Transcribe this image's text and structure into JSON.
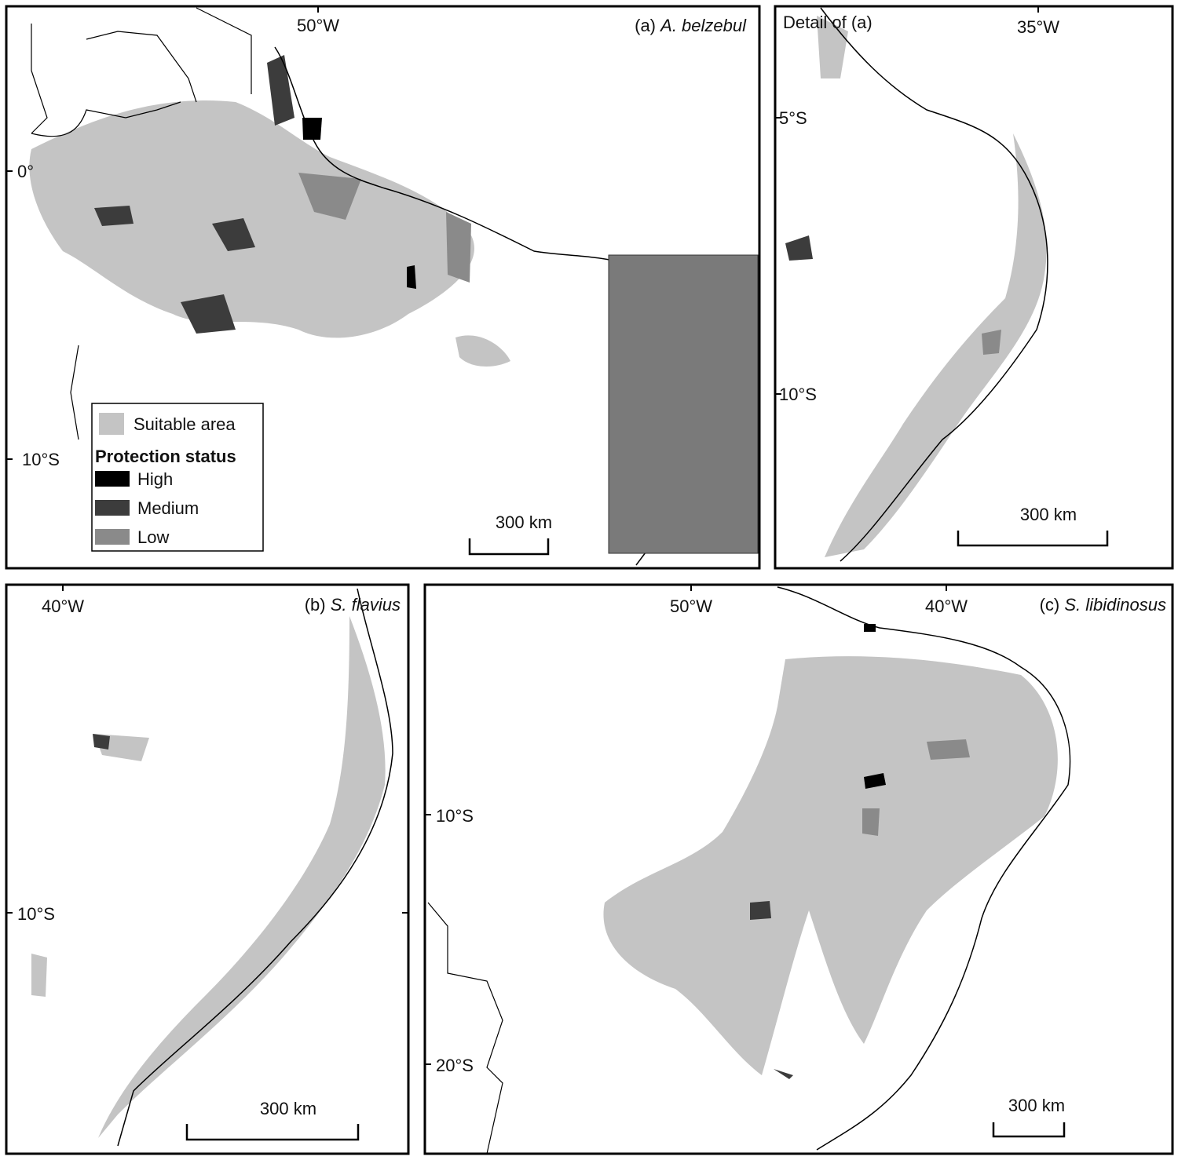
{
  "panels": [
    {
      "label": "(a)",
      "species": "A. belzebul",
      "longitude_labels": [
        "50°W"
      ],
      "latitude_labels": [
        "0°",
        "10°S"
      ],
      "scale_bar": "300 km",
      "legend": {
        "suitable": "Suitable area",
        "title": "Protection status",
        "items": [
          "High",
          "Medium",
          "Low"
        ]
      }
    },
    {
      "label": "Detail of (a)",
      "longitude_labels": [
        "35°W"
      ],
      "latitude_labels": [
        "5°S",
        "10°S"
      ],
      "scale_bar": "300 km"
    },
    {
      "label": "(b)",
      "species": "S. flavius",
      "longitude_labels": [
        "40°W"
      ],
      "latitude_labels": [
        "10°S"
      ],
      "scale_bar": "300 km"
    },
    {
      "label": "(c)",
      "species": "S. libidinosus",
      "longitude_labels": [
        "50°W",
        "40°W"
      ],
      "latitude_labels": [
        "10°S",
        "20°S"
      ],
      "scale_bar": "300 km"
    }
  ]
}
